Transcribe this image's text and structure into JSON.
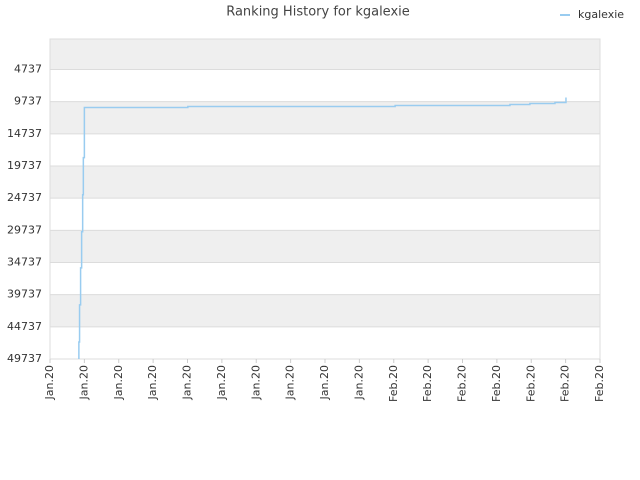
{
  "chart_data": {
    "type": "line",
    "title": "Ranking History for kgalexie",
    "xlim": [
      0,
      16
    ],
    "xticks": [
      {
        "value": 0,
        "label": "Jan.20"
      },
      {
        "value": 1,
        "label": "Jan.20"
      },
      {
        "value": 2,
        "label": "Jan.20"
      },
      {
        "value": 3,
        "label": "Jan.20"
      },
      {
        "value": 4,
        "label": "Jan.20"
      },
      {
        "value": 5,
        "label": "Jan.20"
      },
      {
        "value": 6,
        "label": "Jan.20"
      },
      {
        "value": 7,
        "label": "Jan.20"
      },
      {
        "value": 8,
        "label": "Jan.20"
      },
      {
        "value": 9,
        "label": "Jan.20"
      },
      {
        "value": 10,
        "label": "Feb.20"
      },
      {
        "value": 11,
        "label": "Feb.20"
      },
      {
        "value": 12,
        "label": "Feb.20"
      },
      {
        "value": 13,
        "label": "Feb.20"
      },
      {
        "value": 14,
        "label": "Feb.20"
      },
      {
        "value": 15,
        "label": "Feb.20"
      },
      {
        "value": 16,
        "label": "Feb.20"
      }
    ],
    "ylim": [
      49737,
      0
    ],
    "yticks": [
      4737,
      9737,
      14737,
      19737,
      24737,
      29737,
      34737,
      39737,
      44737,
      49737
    ],
    "grid": true,
    "legend": "top-right",
    "series": [
      {
        "name": "kgalexie",
        "color": "#99ccf0",
        "x": [
          0.84,
          0.84,
          0.86,
          0.86,
          0.89,
          0.89,
          0.92,
          0.92,
          0.95,
          0.95,
          0.97,
          0.97,
          1.0,
          1.0,
          4.01,
          4.01,
          10.04,
          10.04,
          13.38,
          13.38,
          13.96,
          13.96,
          14.69,
          14.69,
          15.01,
          15.01
        ],
        "values": [
          49737,
          47087,
          47087,
          41327,
          41327,
          35566,
          35566,
          29961,
          29961,
          24200,
          24200,
          18439,
          18439,
          10654,
          10654,
          10498,
          10498,
          10342,
          10342,
          10187,
          10187,
          10031,
          10031,
          9875,
          9875,
          9097
        ]
      }
    ]
  }
}
